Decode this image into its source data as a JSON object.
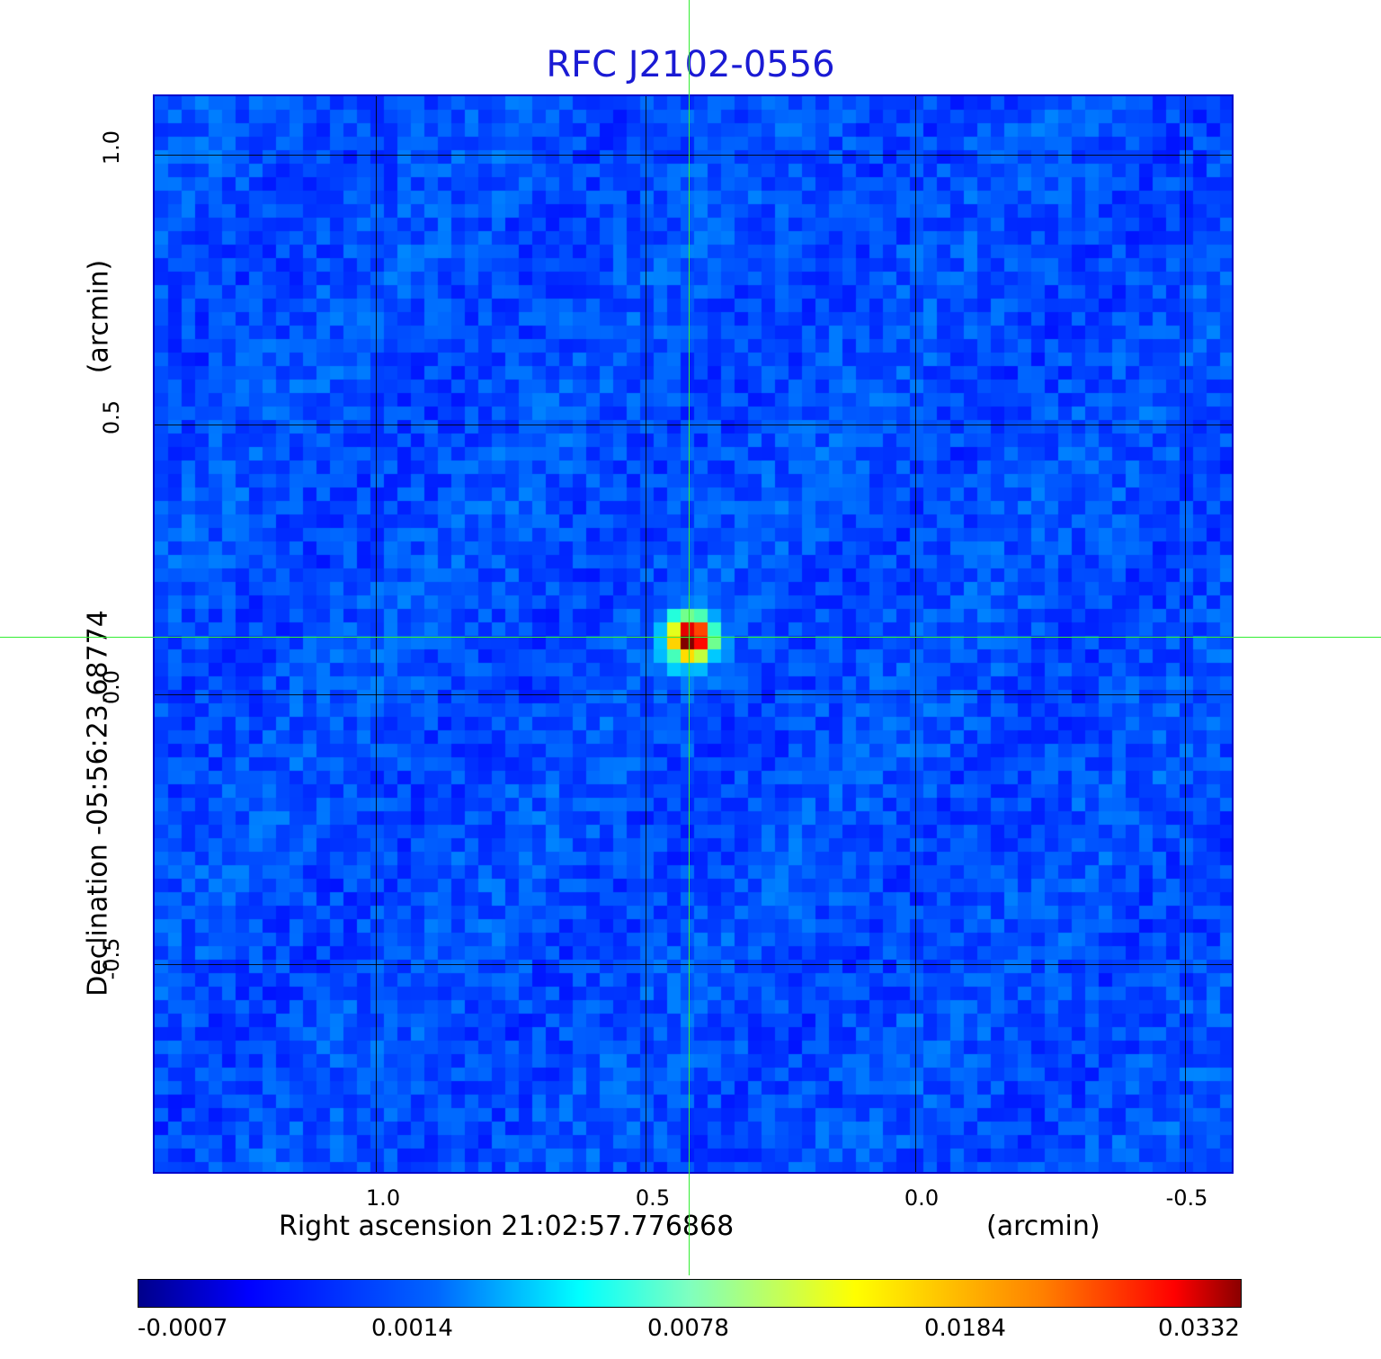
{
  "title": "RFC J2102-0556",
  "colors": {
    "title": "#1a1ad4",
    "frame": "#0000cc",
    "crosshair": "#33ee33",
    "background_map": "#1f55f0"
  },
  "x_axis": {
    "label": "Right ascension  21:02:57.776868",
    "unit": "(arcmin)",
    "ticks": [
      "1.0",
      "0.5",
      "0.0",
      "-0.5"
    ]
  },
  "y_axis": {
    "label": "Declination  -05:56:23.68774",
    "unit": "(arcmin)",
    "ticks": [
      "1.0",
      "0.5",
      "0.0",
      "-0.5"
    ]
  },
  "colorbar": {
    "colormap": "jet",
    "labels": [
      "-0.0007",
      "0.0014",
      "0.0078",
      "0.0184",
      "0.0332"
    ]
  },
  "source": {
    "description_icon": "bright-point-source",
    "peak_level": 0.0332
  }
}
